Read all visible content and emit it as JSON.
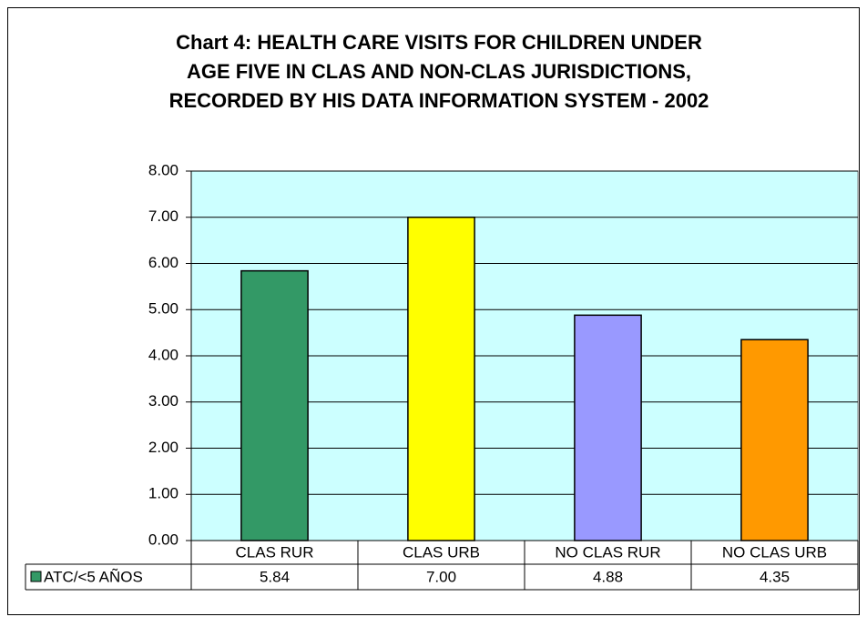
{
  "chart_data": {
    "type": "bar",
    "title": [
      "Chart 4:  HEALTH CARE VISITS FOR CHILDREN UNDER",
      "AGE FIVE IN CLAS AND NON-CLAS JURISDICTIONS,",
      "RECORDED BY HIS DATA INFORMATION SYSTEM - 2002"
    ],
    "categories": [
      "CLAS RUR",
      "CLAS URB",
      "NO CLAS RUR",
      "NO CLAS URB"
    ],
    "series": [
      {
        "name": "ATC/<5 AÑOS",
        "colors": [
          "#339966",
          "#ffff00",
          "#9999ff",
          "#ff9900"
        ],
        "values": [
          5.84,
          7.0,
          4.88,
          4.35
        ],
        "value_labels": [
          "5.84",
          "7.00",
          "4.88",
          "4.35"
        ]
      }
    ],
    "ylim": [
      0,
      8
    ],
    "yticks": [
      {
        "value": 0,
        "label": "0.00"
      },
      {
        "value": 1,
        "label": "1.00"
      },
      {
        "value": 2,
        "label": "2.00"
      },
      {
        "value": 3,
        "label": "3.00"
      },
      {
        "value": 4,
        "label": "4.00"
      },
      {
        "value": 5,
        "label": "5.00"
      },
      {
        "value": 6,
        "label": "6.00"
      },
      {
        "value": 7,
        "label": "7.00"
      },
      {
        "value": 8,
        "label": "8.00"
      }
    ],
    "grid": true,
    "plot_background": "#ccffff",
    "data_table": true
  }
}
